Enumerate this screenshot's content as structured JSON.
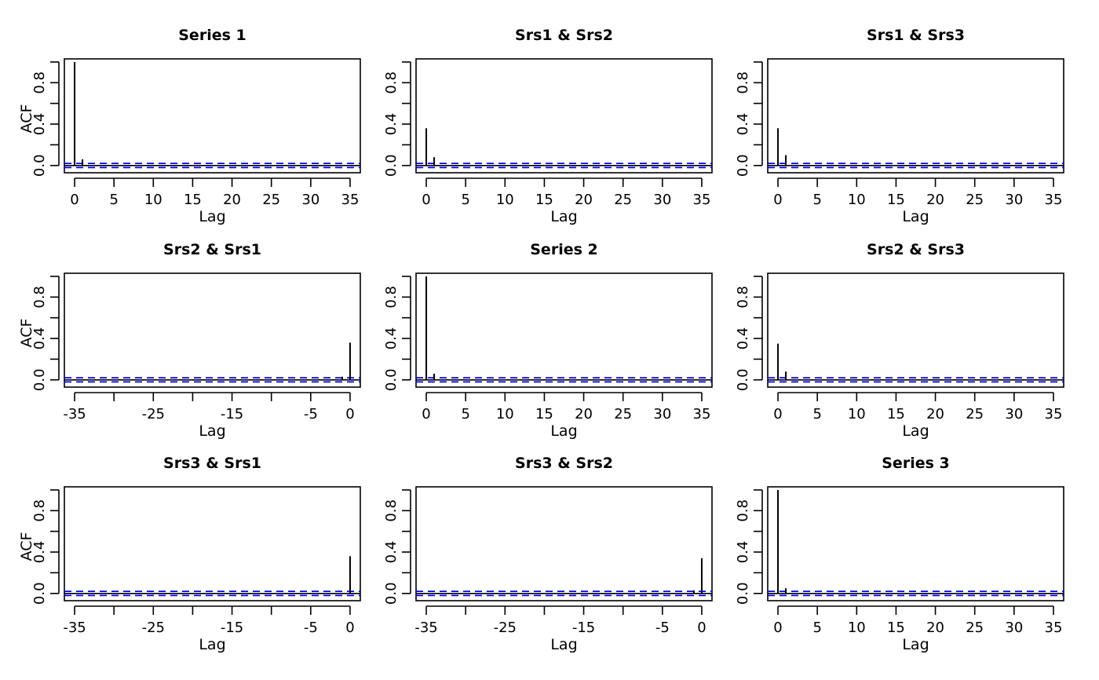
{
  "figure": {
    "ylabel": "ACF",
    "xlabel": "Lag",
    "ci_color": "#0000ff",
    "line_color": "#000000"
  },
  "chart_data": [
    {
      "type": "bar",
      "title": "Series 1",
      "xlabel": "Lag",
      "ylabel": "ACF",
      "xlim": [
        -1.3,
        36.3
      ],
      "ylim": [
        -0.07,
        1.03
      ],
      "xticks": [
        0,
        5,
        10,
        15,
        20,
        25,
        30,
        35
      ],
      "yticks": [
        0.0,
        0.4,
        0.8
      ],
      "y_minor_ticks": [
        0.2,
        0.6,
        1.0
      ],
      "ci": 0.02,
      "lags": [
        0,
        1
      ],
      "values": [
        1.0,
        0.06
      ]
    },
    {
      "type": "bar",
      "title": "Srs1 & Srs2",
      "xlabel": "Lag",
      "ylabel": "",
      "xlim": [
        -1.3,
        36.3
      ],
      "ylim": [
        -0.07,
        1.03
      ],
      "xticks": [
        0,
        5,
        10,
        15,
        20,
        25,
        30,
        35
      ],
      "yticks": [
        0.0,
        0.4,
        0.8
      ],
      "y_minor_ticks": [
        0.2,
        0.6,
        1.0
      ],
      "ci": 0.02,
      "lags": [
        0,
        1
      ],
      "values": [
        0.36,
        0.08
      ]
    },
    {
      "type": "bar",
      "title": "Srs1 & Srs3",
      "xlabel": "Lag",
      "ylabel": "",
      "xlim": [
        -1.3,
        36.3
      ],
      "ylim": [
        -0.07,
        1.03
      ],
      "xticks": [
        0,
        5,
        10,
        15,
        20,
        25,
        30,
        35
      ],
      "yticks": [
        0.0,
        0.4,
        0.8
      ],
      "y_minor_ticks": [
        0.2,
        0.6,
        1.0
      ],
      "ci": 0.02,
      "lags": [
        0,
        1
      ],
      "values": [
        0.36,
        0.1
      ]
    },
    {
      "type": "bar",
      "title": "Srs2 & Srs1",
      "xlabel": "Lag",
      "ylabel": "ACF",
      "xlim": [
        -36.3,
        1.3
      ],
      "ylim": [
        -0.07,
        1.03
      ],
      "xticks": [
        -35,
        -30,
        -25,
        -20,
        -15,
        -10,
        -5,
        0
      ],
      "xtick_labels": [
        "-35",
        "",
        "-25",
        "",
        "-15",
        "",
        "-5",
        "0"
      ],
      "yticks": [
        0.0,
        0.4,
        0.8
      ],
      "y_minor_ticks": [
        0.2,
        0.6,
        1.0
      ],
      "ci": 0.02,
      "lags": [
        -1,
        0
      ],
      "values": [
        0.03,
        0.36
      ]
    },
    {
      "type": "bar",
      "title": "Series 2",
      "xlabel": "Lag",
      "ylabel": "",
      "xlim": [
        -1.3,
        36.3
      ],
      "ylim": [
        -0.07,
        1.03
      ],
      "xticks": [
        0,
        5,
        10,
        15,
        20,
        25,
        30,
        35
      ],
      "yticks": [
        0.0,
        0.4,
        0.8
      ],
      "y_minor_ticks": [
        0.2,
        0.6,
        1.0
      ],
      "ci": 0.02,
      "lags": [
        0,
        1
      ],
      "values": [
        1.0,
        0.06
      ]
    },
    {
      "type": "bar",
      "title": "Srs2 & Srs3",
      "xlabel": "Lag",
      "ylabel": "",
      "xlim": [
        -1.3,
        36.3
      ],
      "ylim": [
        -0.07,
        1.03
      ],
      "xticks": [
        0,
        5,
        10,
        15,
        20,
        25,
        30,
        35
      ],
      "yticks": [
        0.0,
        0.4,
        0.8
      ],
      "y_minor_ticks": [
        0.2,
        0.6,
        1.0
      ],
      "ci": 0.02,
      "lags": [
        0,
        1
      ],
      "values": [
        0.35,
        0.08
      ]
    },
    {
      "type": "bar",
      "title": "Srs3 & Srs1",
      "xlabel": "Lag",
      "ylabel": "ACF",
      "xlim": [
        -36.3,
        1.3
      ],
      "ylim": [
        -0.07,
        1.03
      ],
      "xticks": [
        -35,
        -30,
        -25,
        -20,
        -15,
        -10,
        -5,
        0
      ],
      "xtick_labels": [
        "-35",
        "",
        "-25",
        "",
        "-15",
        "",
        "-5",
        "0"
      ],
      "yticks": [
        0.0,
        0.4,
        0.8
      ],
      "y_minor_ticks": [
        0.2,
        0.6,
        1.0
      ],
      "ci": 0.02,
      "lags": [
        0
      ],
      "values": [
        0.36
      ]
    },
    {
      "type": "bar",
      "title": "Srs3 & Srs2",
      "xlabel": "Lag",
      "ylabel": "",
      "xlim": [
        -36.3,
        1.3
      ],
      "ylim": [
        -0.07,
        1.03
      ],
      "xticks": [
        -35,
        -30,
        -25,
        -20,
        -15,
        -10,
        -5,
        0
      ],
      "xtick_labels": [
        "-35",
        "",
        "-25",
        "",
        "-15",
        "",
        "-5",
        "0"
      ],
      "yticks": [
        0.0,
        0.4,
        0.8
      ],
      "y_minor_ticks": [
        0.2,
        0.6,
        1.0
      ],
      "ci": 0.02,
      "lags": [
        -1,
        0
      ],
      "values": [
        0.03,
        0.34
      ]
    },
    {
      "type": "bar",
      "title": "Series 3",
      "xlabel": "Lag",
      "ylabel": "",
      "xlim": [
        -1.3,
        36.3
      ],
      "ylim": [
        -0.07,
        1.03
      ],
      "xticks": [
        0,
        5,
        10,
        15,
        20,
        25,
        30,
        35
      ],
      "yticks": [
        0.0,
        0.4,
        0.8
      ],
      "y_minor_ticks": [
        0.2,
        0.6,
        1.0
      ],
      "ci": 0.02,
      "lags": [
        0,
        1
      ],
      "values": [
        1.0,
        0.05
      ]
    }
  ]
}
